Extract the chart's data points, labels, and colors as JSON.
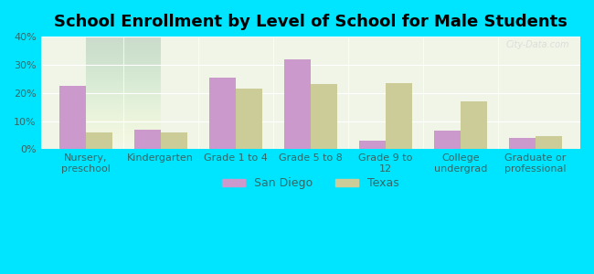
{
  "title": "School Enrollment by Level of School for Male Students",
  "categories": [
    "Nursery,\npreschool",
    "Kindergarten",
    "Grade 1 to 4",
    "Grade 5 to 8",
    "Grade 9 to\n12",
    "College\nundergrad",
    "Graduate or\nprofessional"
  ],
  "san_diego": [
    22.5,
    7.0,
    25.5,
    32.0,
    3.0,
    6.5,
    4.0
  ],
  "texas": [
    6.0,
    6.0,
    21.5,
    23.0,
    23.5,
    17.0,
    4.5
  ],
  "san_diego_color": "#cc99cc",
  "texas_color": "#cccc99",
  "background_outer": "#00e5ff",
  "background_inner": "#f0f5e8",
  "ylim": [
    0,
    40
  ],
  "yticks": [
    0,
    10,
    20,
    30,
    40
  ],
  "ytick_labels": [
    "0%",
    "10%",
    "20%",
    "30%",
    "40%"
  ],
  "bar_width": 0.35,
  "legend_labels": [
    "San Diego",
    "Texas"
  ],
  "title_fontsize": 13,
  "tick_fontsize": 8,
  "legend_fontsize": 9
}
